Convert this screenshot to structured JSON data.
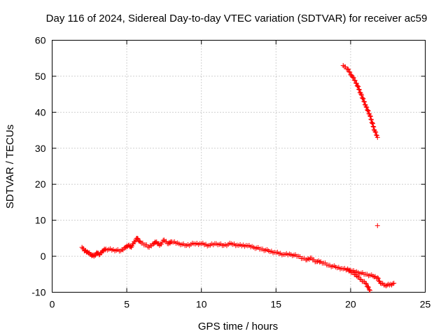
{
  "chart_data": {
    "type": "scatter",
    "title": "Day 116 of 2024, Sidereal Day-to-day VTEC variation (SDTVAR) for receiver ac59",
    "xlabel": "GPS time / hours",
    "ylabel": "SDTVAR / TECUs",
    "xlim": [
      0,
      25
    ],
    "ylim": [
      -10,
      60
    ],
    "xticks": [
      0,
      5,
      10,
      15,
      20,
      25
    ],
    "yticks": [
      -10,
      0,
      10,
      20,
      30,
      40,
      50,
      60
    ],
    "grid": true,
    "marker": "+",
    "color": "#ff0000",
    "series": [
      {
        "name": "trace-main",
        "x": [
          2.0,
          2.2,
          2.4,
          2.6,
          2.8,
          3.0,
          3.2,
          3.4,
          3.6,
          4.6,
          4.9,
          5.1,
          5.3,
          5.5,
          5.7,
          5.9,
          6.5,
          6.8,
          7.0,
          7.2,
          7.5,
          7.8,
          8.0,
          8.5,
          9.0,
          9.5,
          10.0,
          10.5,
          11.0,
          11.5,
          12.0,
          12.5,
          13.0,
          13.5,
          14.0,
          14.5,
          15.0,
          15.5,
          16.0,
          16.5,
          17.0,
          17.3,
          17.7,
          18.0,
          18.5,
          19.0,
          19.5,
          20.0,
          20.5,
          21.0,
          21.5,
          21.8,
          22.0,
          22.3,
          22.6,
          22.9
        ],
        "y": [
          2.5,
          1.5,
          1.0,
          0.5,
          0.0,
          1.0,
          0.5,
          1.5,
          2.0,
          1.5,
          2.5,
          3.0,
          2.5,
          4.0,
          5.0,
          4.0,
          2.5,
          3.5,
          4.0,
          3.0,
          4.5,
          3.5,
          4.0,
          3.5,
          3.0,
          3.5,
          3.5,
          3.0,
          3.5,
          3.0,
          3.5,
          3.0,
          3.0,
          2.5,
          2.0,
          1.5,
          1.0,
          0.5,
          0.5,
          0.0,
          -1.0,
          -0.5,
          -1.5,
          -1.5,
          -2.5,
          -3.0,
          -3.5,
          -4.0,
          -4.5,
          -5.0,
          -5.5,
          -6.0,
          -7.5,
          -8.0,
          -8.0,
          -7.5
        ]
      },
      {
        "name": "trace-branch",
        "x": [
          19.8,
          20.1,
          20.4,
          20.7,
          21.0,
          21.3
        ],
        "y": [
          -3.5,
          -4.5,
          -5.5,
          -6.5,
          -7.5,
          -9.5
        ]
      },
      {
        "name": "trace-high",
        "x": [
          19.5,
          19.8,
          20.1,
          20.4,
          20.7,
          21.0,
          21.3,
          21.6,
          21.8
        ],
        "y": [
          53,
          52,
          50,
          48,
          45,
          42,
          39,
          35,
          33
        ]
      },
      {
        "name": "outlier",
        "x": [
          21.8
        ],
        "y": [
          8.5
        ]
      }
    ]
  }
}
